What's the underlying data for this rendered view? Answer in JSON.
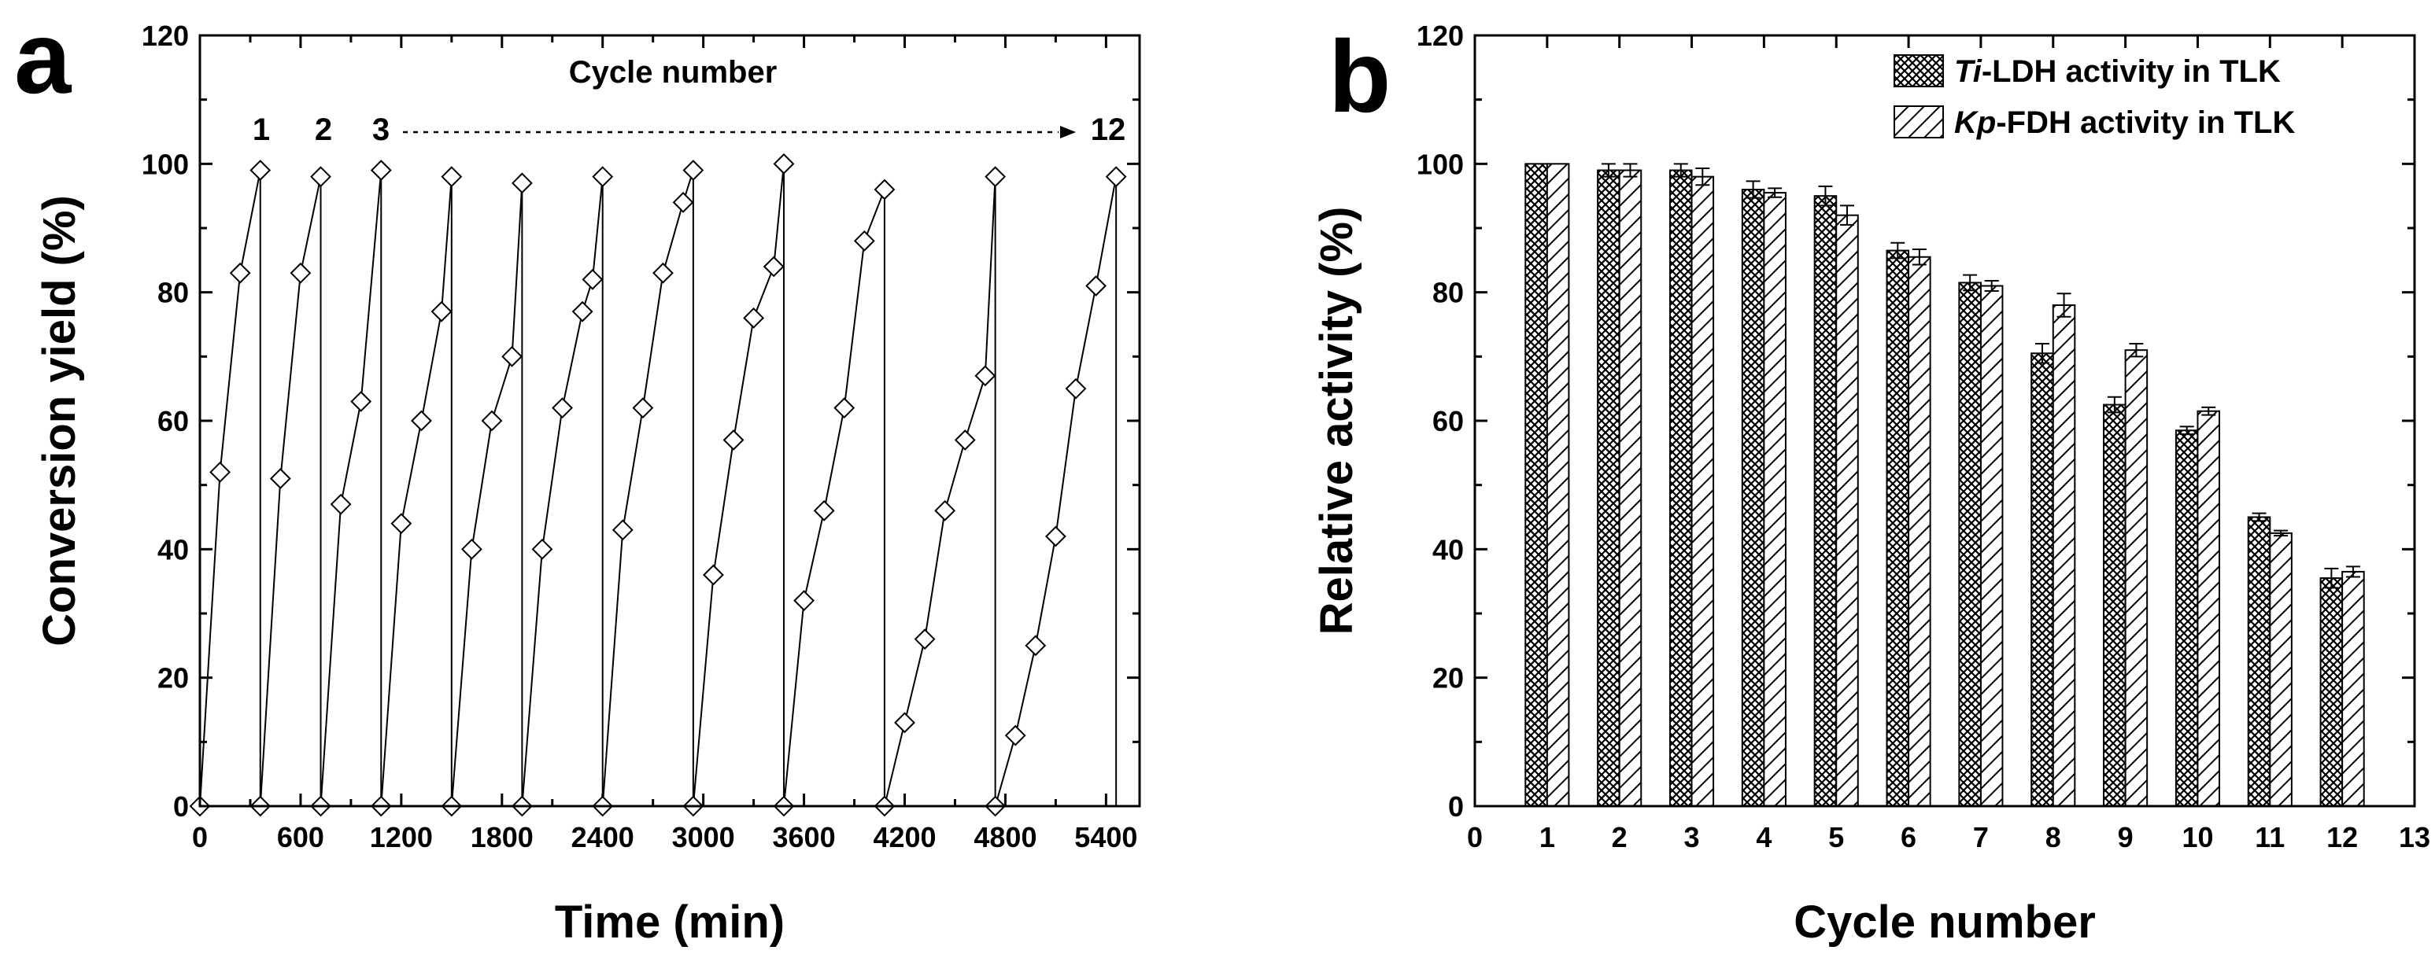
{
  "chart_data": [
    {
      "panel": "a",
      "type": "line",
      "xlabel": "Time (min)",
      "ylabel": "Conversion yield (%)",
      "xlim": [
        0,
        5600
      ],
      "ylim": [
        0,
        120
      ],
      "xticks": [
        0,
        600,
        1200,
        1800,
        2400,
        3000,
        3600,
        4200,
        4800,
        5400
      ],
      "yticks": [
        0,
        20,
        40,
        60,
        80,
        100,
        120
      ],
      "annotation_title": "Cycle number",
      "cycle_labels": [
        "1",
        "2",
        "3",
        "12"
      ],
      "cycles": [
        {
          "x": [
            0,
            120,
            240,
            360
          ],
          "y": [
            0,
            52,
            83,
            99
          ]
        },
        {
          "x": [
            360,
            480,
            600,
            720
          ],
          "y": [
            0,
            51,
            83,
            98
          ]
        },
        {
          "x": [
            720,
            840,
            960,
            1080
          ],
          "y": [
            0,
            47,
            63,
            99
          ]
        },
        {
          "x": [
            1080,
            1200,
            1320,
            1440,
            1500
          ],
          "y": [
            0,
            44,
            60,
            77,
            98
          ]
        },
        {
          "x": [
            1500,
            1620,
            1740,
            1860,
            1920
          ],
          "y": [
            0,
            40,
            60,
            70,
            97
          ]
        },
        {
          "x": [
            1920,
            2040,
            2160,
            2280,
            2340,
            2400
          ],
          "y": [
            0,
            40,
            62,
            77,
            82,
            98
          ]
        },
        {
          "x": [
            2400,
            2520,
            2640,
            2760,
            2880,
            2940
          ],
          "y": [
            0,
            43,
            62,
            83,
            94,
            99
          ]
        },
        {
          "x": [
            2940,
            3060,
            3180,
            3300,
            3420,
            3480
          ],
          "y": [
            0,
            36,
            57,
            76,
            84,
            100
          ]
        },
        {
          "x": [
            3480,
            3600,
            3720,
            3840,
            3960,
            4080
          ],
          "y": [
            0,
            32,
            46,
            62,
            88,
            96
          ]
        },
        {
          "x": [
            4080,
            4200,
            4320,
            4440,
            4560,
            4680,
            4740
          ],
          "y": [
            0,
            13,
            26,
            46,
            57,
            67,
            98
          ]
        },
        {
          "x": [
            4740,
            4860,
            4980,
            5100,
            5220,
            5340,
            5460
          ],
          "y": [
            0,
            11,
            25,
            42,
            65,
            81,
            98
          ]
        }
      ]
    },
    {
      "panel": "b",
      "type": "bar",
      "xlabel": "Cycle number",
      "ylabel": "Relative activity (%)",
      "xlim": [
        0,
        13
      ],
      "ylim": [
        0,
        120
      ],
      "xticks": [
        0,
        1,
        2,
        3,
        4,
        5,
        6,
        7,
        8,
        9,
        10,
        11,
        12,
        13
      ],
      "yticks": [
        0,
        20,
        40,
        60,
        80,
        100,
        120
      ],
      "categories": [
        1,
        2,
        3,
        4,
        5,
        6,
        7,
        8,
        9,
        10,
        11,
        12
      ],
      "series": [
        {
          "name_italic": "Ti",
          "name_rest": "-LDH activity in TLK",
          "pattern": "crosshatch",
          "values": [
            100,
            99,
            99,
            96,
            95,
            86.5,
            81.5,
            70.5,
            62.5,
            58.5,
            45,
            35.5
          ],
          "errors": [
            0,
            1,
            1,
            1.3,
            1.5,
            1.2,
            1.2,
            1.5,
            1.2,
            0.6,
            0.6,
            1.5
          ]
        },
        {
          "name_italic": "Kp",
          "name_rest": "-FDH activity in TLK",
          "pattern": "diagonal",
          "values": [
            100,
            99,
            98,
            95.5,
            92,
            85.5,
            81,
            78,
            71,
            61.5,
            42.5,
            36.5
          ],
          "errors": [
            0,
            1,
            1.3,
            0.7,
            1.5,
            1.2,
            0.8,
            1.8,
            1,
            0.6,
            0.4,
            0.8
          ]
        }
      ]
    }
  ]
}
